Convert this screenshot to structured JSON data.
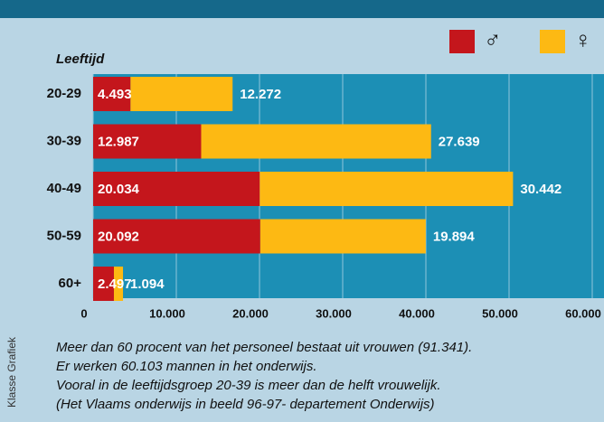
{
  "chart_data": {
    "type": "stacked-barh",
    "y_label": "Leeftijd",
    "categories": [
      "20-29",
      "30-39",
      "40-49",
      "50-59",
      "60+"
    ],
    "series": [
      {
        "name": "♂",
        "color": "#c4161c",
        "values": [
          4493,
          12987,
          20034,
          20092,
          2497
        ],
        "value_labels": [
          "4.493",
          "12.987",
          "20.034",
          "20.092",
          "2.497"
        ]
      },
      {
        "name": "♀",
        "color": "#fdb913",
        "values": [
          12272,
          27639,
          30442,
          19894,
          1094
        ],
        "value_labels": [
          "12.272",
          "27.639",
          "30.442",
          "19.894",
          "1.094"
        ]
      }
    ],
    "xlim": [
      0,
      60000
    ],
    "xticks": [
      0,
      {
        "value": 10000,
        "label": "10.000"
      },
      {
        "value": 20000,
        "label": "20.000"
      },
      {
        "value": 30000,
        "label": "30.000"
      },
      {
        "value": 40000,
        "label": "40.000"
      },
      {
        "value": 50000,
        "label": "50.000"
      },
      {
        "value": 60000,
        "label": "60.000"
      }
    ],
    "grid": true,
    "legend": "top-right",
    "notes": [
      "Meer dan 60 procent van het personeel bestaat uit vrouwen (91.341).",
      "Er werken 60.103 mannen in het onderwijs.",
      "Vooral in de leeftijdsgroep 20-39 is meer dan de helft vrouwelijk.",
      "(Het Vlaams onderwijs in beeld 96-97- departement Onderwijs)"
    ],
    "source": "Klasse Grafiek"
  }
}
